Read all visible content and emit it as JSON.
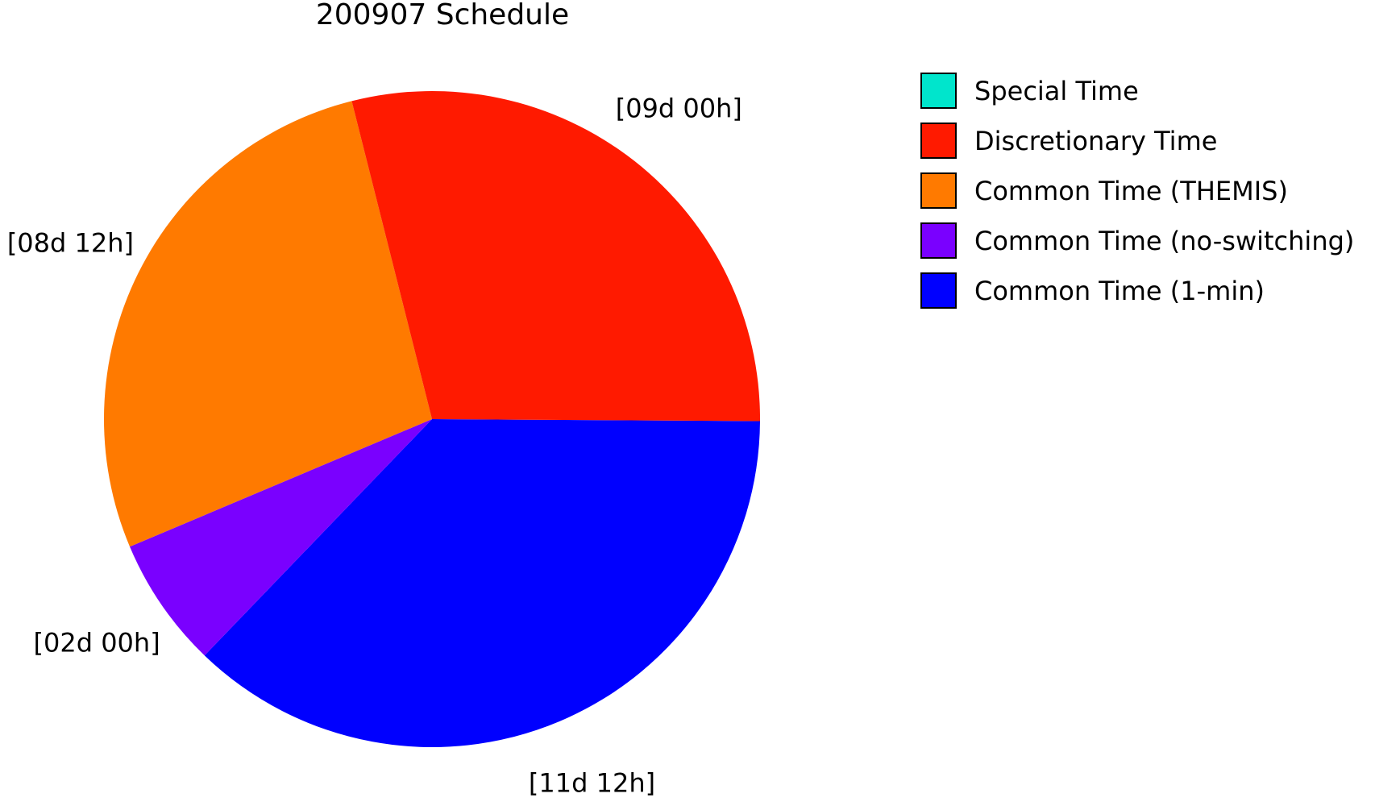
{
  "chart_data": {
    "type": "pie",
    "title": "200907 Schedule",
    "unit": "days",
    "legend_position": "right",
    "slices": [
      {
        "name": "Special Time",
        "value": 0,
        "label": "",
        "color": "#00e5cc"
      },
      {
        "name": "Discretionary Time",
        "value": 9.0,
        "label": "[09d 00h]",
        "color": "#ff1a00"
      },
      {
        "name": "Common Time (THEMIS)",
        "value": 8.5,
        "label": "[08d 12h]",
        "color": "#ff7a00"
      },
      {
        "name": "Common Time (no-switching)",
        "value": 2.0,
        "label": "[02d 00h]",
        "color": "#7a00ff"
      },
      {
        "name": "Common Time (1-min)",
        "value": 11.5,
        "label": "[11d 12h]",
        "color": "#0000ff"
      }
    ]
  }
}
